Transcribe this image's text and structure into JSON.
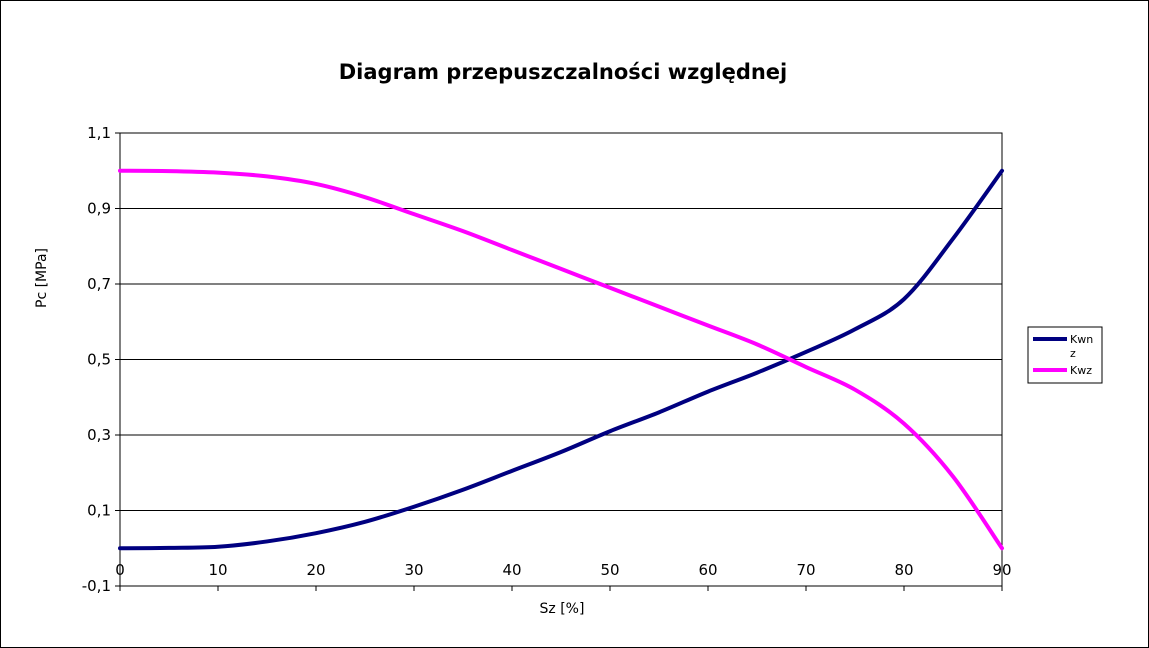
{
  "chart_data": {
    "type": "line",
    "title": "Diagram przepuszczalności względnej",
    "xlabel": "Sz [%]",
    "ylabel": "Pc [MPa]",
    "xlim": [
      0,
      90
    ],
    "ylim": [
      -0.1,
      1.1
    ],
    "x_ticks": [
      "0",
      "10",
      "20",
      "30",
      "40",
      "50",
      "60",
      "70",
      "80",
      "90"
    ],
    "y_ticks": [
      "1,1",
      "0,9",
      "0,7",
      "0,5",
      "0,3",
      "0,1",
      "-0,1"
    ],
    "grid": "horizontal",
    "legend_position": "right",
    "x": [
      0,
      5,
      10,
      15,
      20,
      25,
      30,
      35,
      40,
      45,
      50,
      55,
      60,
      65,
      70,
      75,
      80,
      85,
      90
    ],
    "series": [
      {
        "name": "Kwnz",
        "legend_lines": [
          "Kwn",
          "z"
        ],
        "color": "#000080",
        "values": [
          0.0,
          0.001,
          0.004,
          0.018,
          0.04,
          0.07,
          0.11,
          0.155,
          0.205,
          0.255,
          0.31,
          0.36,
          0.415,
          0.465,
          0.52,
          0.58,
          0.66,
          0.82,
          1.0
        ]
      },
      {
        "name": "Kwz",
        "legend_lines": [
          "Kwz"
        ],
        "color": "#ff00ff",
        "values": [
          1.0,
          0.999,
          0.995,
          0.985,
          0.965,
          0.93,
          0.885,
          0.84,
          0.79,
          0.74,
          0.69,
          0.64,
          0.59,
          0.54,
          0.48,
          0.42,
          0.33,
          0.19,
          0.0
        ]
      }
    ]
  }
}
